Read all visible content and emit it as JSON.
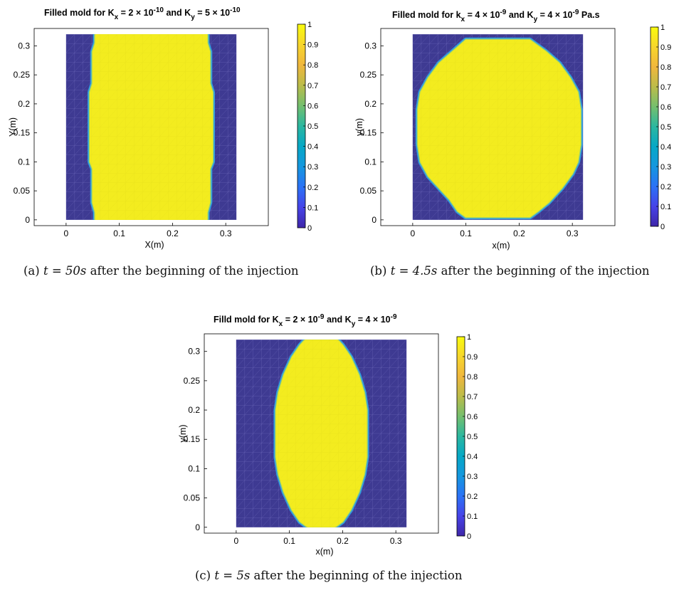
{
  "colors": {
    "filled": "#f3ec1f",
    "empty": "#3e3a92",
    "front": "#2f9be0",
    "mesh": "#6a66b8"
  },
  "colorbar_ticks": [
    "0",
    "0.1",
    "0.2",
    "0.3",
    "0.4",
    "0.5",
    "0.6",
    "0.7",
    "0.8",
    "0.9",
    "1"
  ],
  "colorbar_stops": [
    "#3e26a8",
    "#4743e8",
    "#2b72f6",
    "#1597df",
    "#06a8c6",
    "#2bb7a0",
    "#74bf6e",
    "#bbbc4a",
    "#f0b73d",
    "#f7d62c",
    "#f9fb0e"
  ],
  "chart_data": [
    {
      "type": "heatmap",
      "title": {
        "a": "Filled mold for K",
        "s1": "x",
        "b": " = 2 × 10",
        "p1": "-10",
        "c": " and K",
        "s2": "y",
        "d": " = 5 × 10",
        "p2": "-10",
        "e": ""
      },
      "xlabel": "X(m)",
      "ylabel": "Y(m)",
      "xlim": [
        -0.06,
        0.38
      ],
      "ylim": [
        -0.01,
        0.33
      ],
      "xticks": [
        "0",
        "0.1",
        "0.2",
        "0.3"
      ],
      "xtick_values": [
        0,
        0.1,
        0.2,
        0.3
      ],
      "yticks": [
        "0",
        "0.05",
        "0.1",
        "0.15",
        "0.2",
        "0.25",
        "0.3"
      ],
      "ytick_values": [
        0,
        0.05,
        0.1,
        0.15,
        0.2,
        0.25,
        0.3
      ],
      "mold": {
        "x": [
          0,
          0.32
        ],
        "y": [
          0,
          0.32
        ]
      },
      "filled_region": [
        [
          0.055,
          0
        ],
        [
          0.265,
          0
        ],
        [
          0.265,
          0.013
        ],
        [
          0.27,
          0.03
        ],
        [
          0.27,
          0.088
        ],
        [
          0.275,
          0.1
        ],
        [
          0.275,
          0.22
        ],
        [
          0.27,
          0.235
        ],
        [
          0.27,
          0.29
        ],
        [
          0.265,
          0.305
        ],
        [
          0.265,
          0.32
        ],
        [
          0.055,
          0.32
        ],
        [
          0.055,
          0.305
        ],
        [
          0.05,
          0.29
        ],
        [
          0.05,
          0.235
        ],
        [
          0.045,
          0.22
        ],
        [
          0.045,
          0.1
        ],
        [
          0.05,
          0.088
        ],
        [
          0.05,
          0.03
        ],
        [
          0.055,
          0.013
        ]
      ],
      "colorbar_range": [
        0,
        1
      ],
      "caption": {
        "label": "(a) ",
        "math": "t = 50s",
        "text": " after the beginning of the injection"
      }
    },
    {
      "type": "heatmap",
      "title": {
        "a": "Filled mold for k",
        "s1": "x",
        "b": " = 4 × 10",
        "p1": "-9",
        "c": " and K",
        "s2": "y",
        "d": " = 4 × 10",
        "p2": "-9",
        "e": " Pa.s"
      },
      "xlabel": "x(m)",
      "ylabel": "y(m)",
      "xlim": [
        -0.06,
        0.38
      ],
      "ylim": [
        -0.01,
        0.33
      ],
      "xticks": [
        "0",
        "0.1",
        "0.2",
        "0.3"
      ],
      "xtick_values": [
        0,
        0.1,
        0.2,
        0.3
      ],
      "yticks": [
        "0",
        "0.05",
        "0.1",
        "0.15",
        "0.2",
        "0.25",
        "0.3"
      ],
      "ytick_values": [
        0,
        0.05,
        0.1,
        0.15,
        0.2,
        0.25,
        0.3
      ],
      "mold": {
        "x": [
          0,
          0.32
        ],
        "y": [
          0,
          0.32
        ]
      },
      "filled_region": [
        [
          0.1,
          0.005
        ],
        [
          0.22,
          0.005
        ],
        [
          0.235,
          0.015
        ],
        [
          0.255,
          0.03
        ],
        [
          0.28,
          0.055
        ],
        [
          0.3,
          0.08
        ],
        [
          0.31,
          0.1
        ],
        [
          0.315,
          0.13
        ],
        [
          0.315,
          0.19
        ],
        [
          0.31,
          0.22
        ],
        [
          0.295,
          0.245
        ],
        [
          0.275,
          0.27
        ],
        [
          0.25,
          0.29
        ],
        [
          0.22,
          0.31
        ],
        [
          0.1,
          0.31
        ],
        [
          0.075,
          0.29
        ],
        [
          0.05,
          0.27
        ],
        [
          0.03,
          0.245
        ],
        [
          0.015,
          0.22
        ],
        [
          0.01,
          0.19
        ],
        [
          0.01,
          0.13
        ],
        [
          0.015,
          0.1
        ],
        [
          0.03,
          0.075
        ],
        [
          0.05,
          0.055
        ],
        [
          0.07,
          0.035
        ],
        [
          0.085,
          0.015
        ]
      ],
      "colorbar_range": [
        0,
        1
      ],
      "caption": {
        "label": "(b) ",
        "math": "t = 4.5s",
        "text": " after the beginning of the injection"
      }
    },
    {
      "type": "heatmap",
      "title": {
        "a": "Filld mold for K",
        "s1": "x",
        "b": " = 2 × 10",
        "p1": "-9",
        "c": " and K",
        "s2": "y",
        "d": " = 4 × 10",
        "p2": "-9",
        "e": ""
      },
      "xlabel": "x(m)",
      "ylabel": "y(m)",
      "xlim": [
        -0.06,
        0.38
      ],
      "ylim": [
        -0.01,
        0.33
      ],
      "xticks": [
        "0",
        "0.1",
        "0.2",
        "0.3"
      ],
      "xtick_values": [
        0,
        0.1,
        0.2,
        0.3
      ],
      "yticks": [
        "0",
        "0.05",
        "0.1",
        "0.15",
        "0.2",
        "0.25",
        "0.3"
      ],
      "ytick_values": [
        0,
        0.05,
        0.1,
        0.15,
        0.2,
        0.25,
        0.3
      ],
      "mold": {
        "x": [
          0,
          0.32
        ],
        "y": [
          0,
          0.32
        ]
      },
      "filled_region": [
        [
          0.135,
          0
        ],
        [
          0.185,
          0
        ],
        [
          0.2,
          0.01
        ],
        [
          0.215,
          0.03
        ],
        [
          0.23,
          0.06
        ],
        [
          0.24,
          0.09
        ],
        [
          0.245,
          0.12
        ],
        [
          0.245,
          0.2
        ],
        [
          0.24,
          0.23
        ],
        [
          0.23,
          0.26
        ],
        [
          0.215,
          0.29
        ],
        [
          0.2,
          0.31
        ],
        [
          0.19,
          0.32
        ],
        [
          0.13,
          0.32
        ],
        [
          0.12,
          0.31
        ],
        [
          0.105,
          0.29
        ],
        [
          0.09,
          0.26
        ],
        [
          0.08,
          0.23
        ],
        [
          0.075,
          0.2
        ],
        [
          0.075,
          0.12
        ],
        [
          0.08,
          0.09
        ],
        [
          0.09,
          0.06
        ],
        [
          0.105,
          0.03
        ],
        [
          0.12,
          0.01
        ]
      ],
      "colorbar_range": [
        0,
        1
      ],
      "caption": {
        "label": "(c) ",
        "math": "t = 5s",
        "text": " after the beginning of the injection"
      }
    }
  ]
}
